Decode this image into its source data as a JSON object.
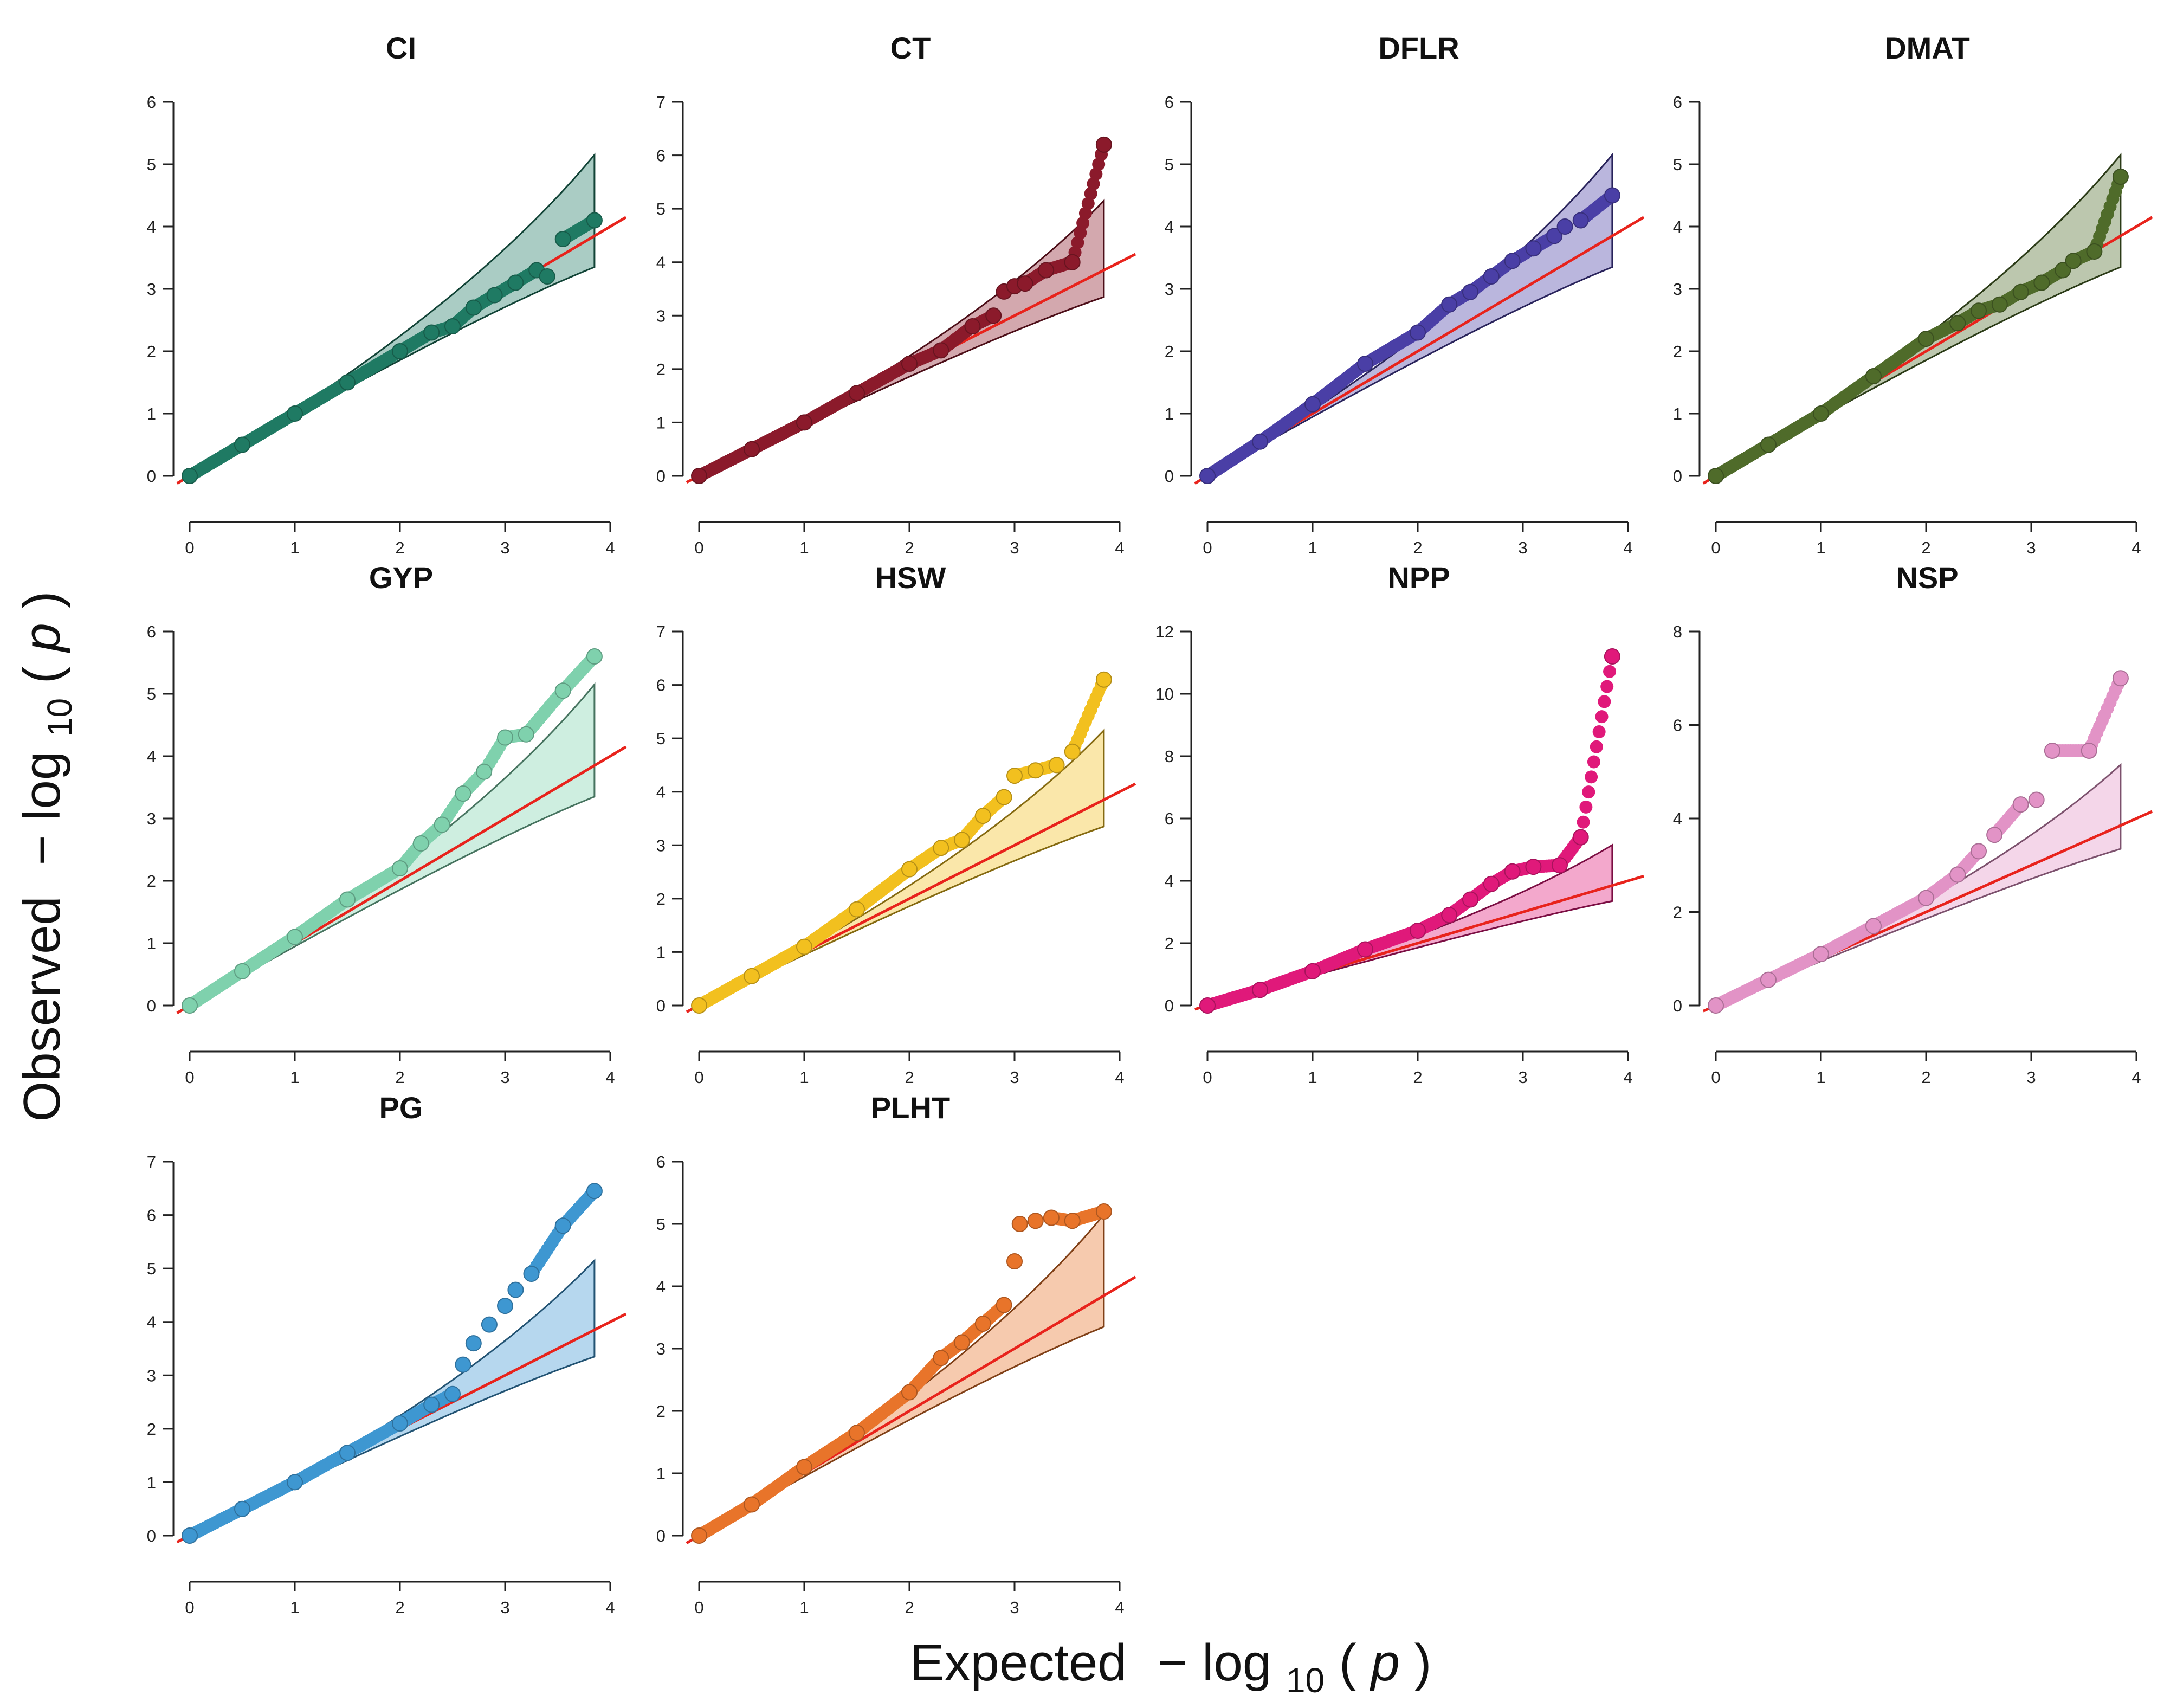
{
  "figure": {
    "xlabel": {
      "prefix": "Expected",
      "minus": "−",
      "log": "log",
      "sub": "10",
      "open": "(",
      "var": "p",
      "close": ")"
    },
    "ylabel": {
      "prefix": "Observed",
      "minus": "−",
      "log": "log",
      "sub": "10",
      "open": "(",
      "var": "p",
      "close": ")"
    }
  },
  "chart_data": [
    {
      "type": "scatter",
      "title": "CI",
      "color": "#1f7a63",
      "xlim": [
        0,
        4
      ],
      "ylim": [
        0,
        6
      ],
      "xticks": [
        "0",
        "1",
        "2",
        "3",
        "4"
      ],
      "yticks": [
        "0",
        "1",
        "2",
        "3",
        "4",
        "5",
        "6"
      ],
      "points": [
        [
          0,
          0
        ],
        [
          0.5,
          0.5
        ],
        [
          1,
          1
        ],
        [
          1.5,
          1.5
        ],
        [
          2,
          2
        ],
        [
          2.3,
          2.3
        ],
        [
          2.5,
          2.4
        ],
        [
          2.7,
          2.7
        ],
        [
          2.9,
          2.9
        ],
        [
          3.1,
          3.1
        ],
        [
          3.3,
          3.3
        ],
        [
          3.4,
          3.2
        ],
        [
          3.55,
          3.8
        ],
        [
          3.85,
          4.1
        ]
      ],
      "ci_band": {
        "upper_end": 5.15,
        "lower_end": 3.35
      }
    },
    {
      "type": "scatter",
      "title": "CT",
      "color": "#8b1a2b",
      "xlim": [
        0,
        4
      ],
      "ylim": [
        0,
        7
      ],
      "xticks": [
        "0",
        "1",
        "2",
        "3",
        "4"
      ],
      "yticks": [
        "0",
        "1",
        "2",
        "3",
        "4",
        "5",
        "6",
        "7"
      ],
      "points": [
        [
          0,
          0
        ],
        [
          0.5,
          0.5
        ],
        [
          1,
          1
        ],
        [
          1.5,
          1.55
        ],
        [
          2,
          2.1
        ],
        [
          2.3,
          2.35
        ],
        [
          2.6,
          2.8
        ],
        [
          2.8,
          3.0
        ],
        [
          2.9,
          3.45
        ],
        [
          3.0,
          3.55
        ],
        [
          3.1,
          3.6
        ],
        [
          3.3,
          3.85
        ],
        [
          3.55,
          4.0
        ],
        [
          3.85,
          6.2
        ]
      ],
      "ci_band": {
        "upper_end": 5.15,
        "lower_end": 3.35
      }
    },
    {
      "type": "scatter",
      "title": "DFLR",
      "color": "#4a3fa6",
      "xlim": [
        0,
        4
      ],
      "ylim": [
        0,
        6
      ],
      "xticks": [
        "0",
        "1",
        "2",
        "3",
        "4"
      ],
      "yticks": [
        "0",
        "1",
        "2",
        "3",
        "4",
        "5",
        "6"
      ],
      "points": [
        [
          0,
          0
        ],
        [
          0.5,
          0.55
        ],
        [
          1,
          1.15
        ],
        [
          1.5,
          1.8
        ],
        [
          2,
          2.3
        ],
        [
          2.3,
          2.75
        ],
        [
          2.5,
          2.95
        ],
        [
          2.7,
          3.2
        ],
        [
          2.9,
          3.45
        ],
        [
          3.1,
          3.65
        ],
        [
          3.3,
          3.85
        ],
        [
          3.4,
          4.0
        ],
        [
          3.55,
          4.1
        ],
        [
          3.85,
          4.5
        ]
      ],
      "ci_band": {
        "upper_end": 5.15,
        "lower_end": 3.35
      }
    },
    {
      "type": "scatter",
      "title": "DMAT",
      "color": "#4f6b2a",
      "xlim": [
        0,
        4
      ],
      "ylim": [
        0,
        6
      ],
      "xticks": [
        "0",
        "1",
        "2",
        "3",
        "4"
      ],
      "yticks": [
        "0",
        "1",
        "2",
        "3",
        "4",
        "5",
        "6"
      ],
      "points": [
        [
          0,
          0
        ],
        [
          0.5,
          0.5
        ],
        [
          1,
          1
        ],
        [
          1.5,
          1.6
        ],
        [
          2,
          2.2
        ],
        [
          2.3,
          2.45
        ],
        [
          2.5,
          2.65
        ],
        [
          2.7,
          2.75
        ],
        [
          2.9,
          2.95
        ],
        [
          3.1,
          3.1
        ],
        [
          3.3,
          3.3
        ],
        [
          3.4,
          3.45
        ],
        [
          3.6,
          3.6
        ],
        [
          3.85,
          4.8
        ]
      ],
      "ci_band": {
        "upper_end": 5.15,
        "lower_end": 3.35
      }
    },
    {
      "type": "scatter",
      "title": "GYP",
      "color": "#7fd1ad",
      "xlim": [
        0,
        4
      ],
      "ylim": [
        0,
        6
      ],
      "xticks": [
        "0",
        "1",
        "2",
        "3",
        "4"
      ],
      "yticks": [
        "0",
        "1",
        "2",
        "3",
        "4",
        "5",
        "6"
      ],
      "points": [
        [
          0,
          0
        ],
        [
          0.5,
          0.55
        ],
        [
          1,
          1.1
        ],
        [
          1.5,
          1.7
        ],
        [
          2,
          2.2
        ],
        [
          2.2,
          2.6
        ],
        [
          2.4,
          2.9
        ],
        [
          2.6,
          3.4
        ],
        [
          2.8,
          3.75
        ],
        [
          3.0,
          4.3
        ],
        [
          3.2,
          4.35
        ],
        [
          3.55,
          5.05
        ],
        [
          3.85,
          5.6
        ]
      ],
      "ci_band": {
        "upper_end": 5.15,
        "lower_end": 3.35
      }
    },
    {
      "type": "scatter",
      "title": "HSW",
      "color": "#f2c01f",
      "xlim": [
        0,
        4
      ],
      "ylim": [
        0,
        7
      ],
      "xticks": [
        "0",
        "1",
        "2",
        "3",
        "4"
      ],
      "yticks": [
        "0",
        "1",
        "2",
        "3",
        "4",
        "5",
        "6",
        "7"
      ],
      "points": [
        [
          0,
          0
        ],
        [
          0.5,
          0.55
        ],
        [
          1,
          1.1
        ],
        [
          1.5,
          1.8
        ],
        [
          2,
          2.55
        ],
        [
          2.3,
          2.95
        ],
        [
          2.5,
          3.1
        ],
        [
          2.7,
          3.55
        ],
        [
          2.9,
          3.9
        ],
        [
          3.0,
          4.3
        ],
        [
          3.2,
          4.4
        ],
        [
          3.4,
          4.5
        ],
        [
          3.55,
          4.75
        ],
        [
          3.85,
          6.1
        ]
      ],
      "ci_band": {
        "upper_end": 5.15,
        "lower_end": 3.35
      }
    },
    {
      "type": "scatter",
      "title": "NPP",
      "color": "#e0197a",
      "xlim": [
        0,
        4
      ],
      "ylim": [
        0,
        12
      ],
      "xticks": [
        "0",
        "1",
        "2",
        "3",
        "4"
      ],
      "yticks": [
        "0",
        "2",
        "4",
        "6",
        "8",
        "10",
        "12"
      ],
      "points": [
        [
          0,
          0
        ],
        [
          0.5,
          0.5
        ],
        [
          1,
          1.1
        ],
        [
          1.5,
          1.8
        ],
        [
          2,
          2.4
        ],
        [
          2.3,
          2.9
        ],
        [
          2.5,
          3.4
        ],
        [
          2.7,
          3.9
        ],
        [
          2.9,
          4.3
        ],
        [
          3.1,
          4.45
        ],
        [
          3.35,
          4.5
        ],
        [
          3.55,
          5.4
        ],
        [
          3.85,
          11.2
        ]
      ],
      "ci_band": {
        "upper_end": 5.15,
        "lower_end": 3.35
      }
    },
    {
      "type": "scatter",
      "title": "NSP",
      "color": "#e293c6",
      "xlim": [
        0,
        4
      ],
      "ylim": [
        0,
        8
      ],
      "xticks": [
        "0",
        "1",
        "2",
        "3",
        "4"
      ],
      "yticks": [
        "0",
        "2",
        "4",
        "6",
        "8"
      ],
      "points": [
        [
          0,
          0
        ],
        [
          0.5,
          0.55
        ],
        [
          1,
          1.1
        ],
        [
          1.5,
          1.7
        ],
        [
          2,
          2.3
        ],
        [
          2.3,
          2.8
        ],
        [
          2.5,
          3.3
        ],
        [
          2.65,
          3.65
        ],
        [
          2.9,
          4.3
        ],
        [
          3.05,
          4.4
        ],
        [
          3.2,
          5.45
        ],
        [
          3.55,
          5.45
        ],
        [
          3.85,
          7.0
        ]
      ],
      "ci_band": {
        "upper_end": 5.15,
        "lower_end": 3.35
      }
    },
    {
      "type": "scatter",
      "title": "PG",
      "color": "#3e97d1",
      "xlim": [
        0,
        4
      ],
      "ylim": [
        0,
        7
      ],
      "xticks": [
        "0",
        "1",
        "2",
        "3",
        "4"
      ],
      "yticks": [
        "0",
        "1",
        "2",
        "3",
        "4",
        "5",
        "6",
        "7"
      ],
      "points": [
        [
          0,
          0
        ],
        [
          0.5,
          0.5
        ],
        [
          1,
          1
        ],
        [
          1.5,
          1.55
        ],
        [
          2,
          2.1
        ],
        [
          2.3,
          2.45
        ],
        [
          2.5,
          2.65
        ],
        [
          2.6,
          3.2
        ],
        [
          2.7,
          3.6
        ],
        [
          2.85,
          3.95
        ],
        [
          3.0,
          4.3
        ],
        [
          3.1,
          4.6
        ],
        [
          3.25,
          4.9
        ],
        [
          3.55,
          5.8
        ],
        [
          3.85,
          6.45
        ]
      ],
      "ci_band": {
        "upper_end": 5.15,
        "lower_end": 3.35
      }
    },
    {
      "type": "scatter",
      "title": "PLHT",
      "color": "#e8742a",
      "xlim": [
        0,
        4
      ],
      "ylim": [
        0,
        6
      ],
      "xticks": [
        "0",
        "1",
        "2",
        "3",
        "4"
      ],
      "yticks": [
        "0",
        "1",
        "2",
        "3",
        "4",
        "5",
        "6"
      ],
      "points": [
        [
          0,
          0
        ],
        [
          0.5,
          0.5
        ],
        [
          1,
          1.1
        ],
        [
          1.5,
          1.65
        ],
        [
          2,
          2.3
        ],
        [
          2.3,
          2.85
        ],
        [
          2.5,
          3.1
        ],
        [
          2.7,
          3.4
        ],
        [
          2.9,
          3.7
        ],
        [
          3.0,
          4.4
        ],
        [
          3.05,
          5.0
        ],
        [
          3.2,
          5.05
        ],
        [
          3.35,
          5.1
        ],
        [
          3.55,
          5.05
        ],
        [
          3.85,
          5.2
        ]
      ],
      "ci_band": {
        "upper_end": 5.15,
        "lower_end": 3.35
      }
    }
  ]
}
